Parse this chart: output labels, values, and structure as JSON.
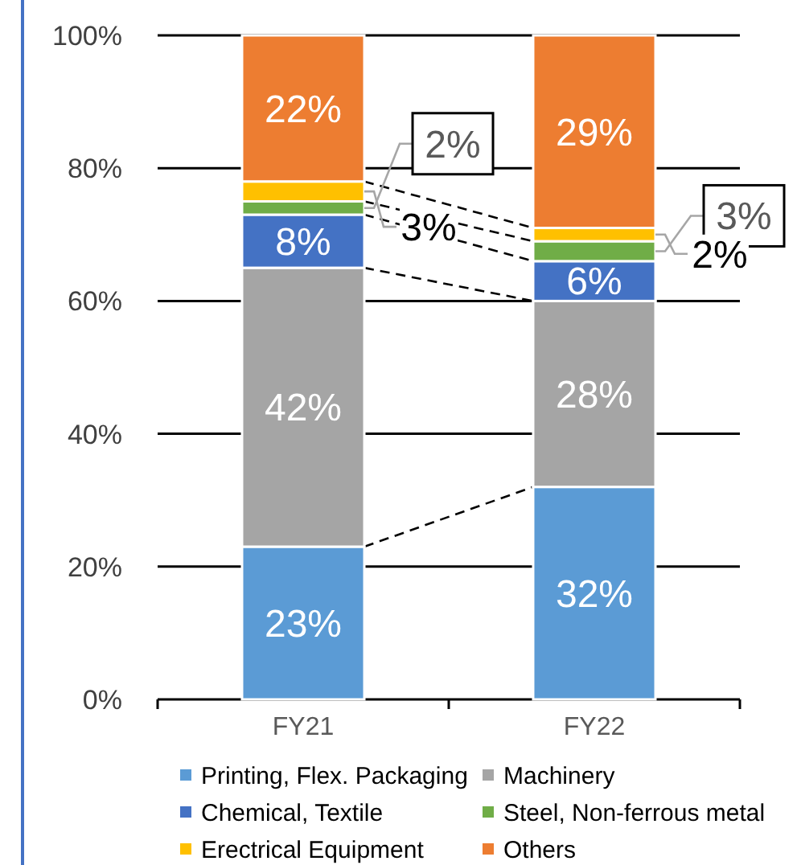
{
  "chart_data": {
    "type": "bar",
    "stacked": true,
    "categories": [
      "FY21",
      "FY22"
    ],
    "series": [
      {
        "name": "Printing, Flex. Packaging",
        "color": "#5b9bd5",
        "values": [
          23,
          32
        ],
        "value_labels": [
          "23%",
          "32%"
        ]
      },
      {
        "name": "Machinery",
        "color": "#a5a5a5",
        "values": [
          42,
          28
        ],
        "value_labels": [
          "42%",
          "28%"
        ]
      },
      {
        "name": "Chemical, Textile",
        "color": "#4472c4",
        "values": [
          8,
          6
        ],
        "value_labels": [
          "8%",
          "6%"
        ]
      },
      {
        "name": "Steel, Non-ferrous metal",
        "color": "#70ad47",
        "values": [
          2,
          3
        ],
        "value_labels": [
          "2%",
          "3%"
        ]
      },
      {
        "name": "Erectrical Equipment",
        "color": "#ffc000",
        "values": [
          3,
          2
        ],
        "value_labels": [
          "3%",
          "2%"
        ]
      },
      {
        "name": "Others",
        "color": "#ed7d31",
        "values": [
          22,
          29
        ],
        "value_labels": [
          "22%",
          "29%"
        ]
      }
    ],
    "ylim": [
      0,
      100
    ],
    "yticks": [
      {
        "value": 0,
        "label": "0%"
      },
      {
        "value": 20,
        "label": "20%"
      },
      {
        "value": 40,
        "label": "40%"
      },
      {
        "value": 60,
        "label": "60%"
      },
      {
        "value": 80,
        "label": "80%"
      },
      {
        "value": 100,
        "label": "100%"
      }
    ],
    "grid": "y",
    "legend": "bottom"
  }
}
